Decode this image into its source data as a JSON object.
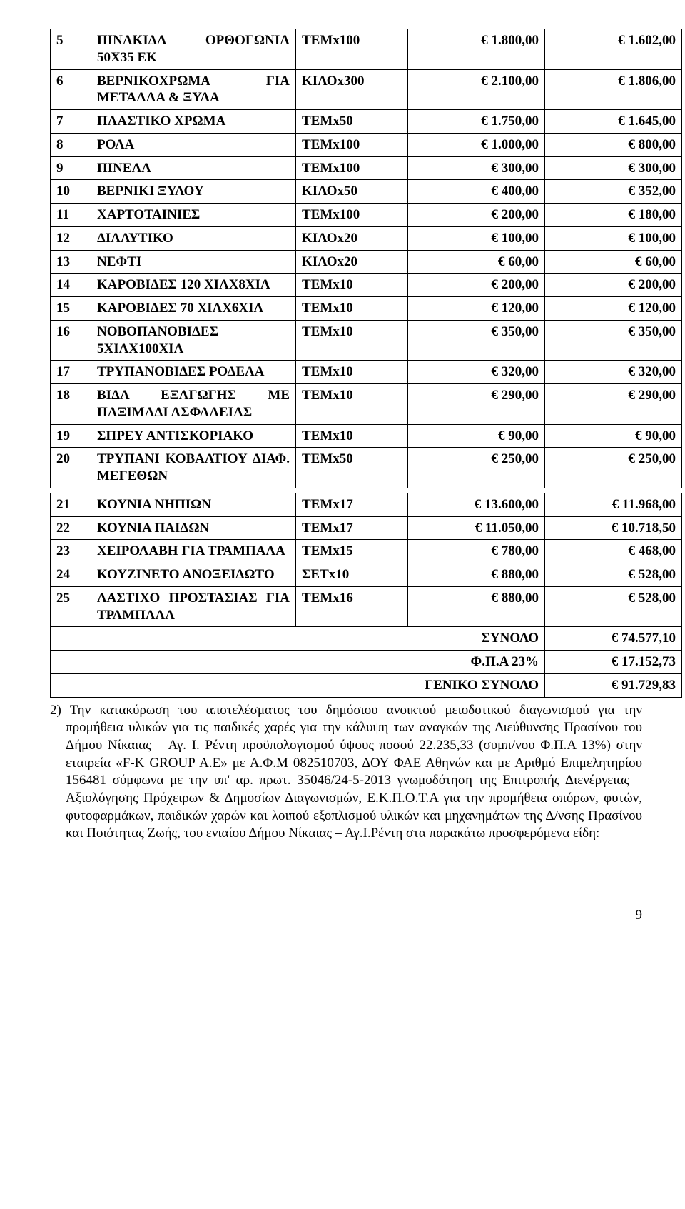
{
  "rows": [
    {
      "n": "5",
      "desc": "ΠΙΝΑΚΙΔΑ ΟΡΘΟΓΩΝΙΑ 50Χ35 ΕΚ",
      "unit": "ΤΕΜx100",
      "p1": "€ 1.800,00",
      "p2": "€ 1.602,00"
    },
    {
      "n": "6",
      "desc": "ΒΕΡΝΙΚΟΧΡΩΜΑ ΓΙΑ ΜΕΤΑΛΛΑ & ΞΥΛΑ",
      "unit": "ΚΙΛΟx300",
      "p1": "€ 2.100,00",
      "p2": "€ 1.806,00"
    },
    {
      "n": "7",
      "desc": "ΠΛΑΣΤΙΚΟ ΧΡΩΜΑ",
      "unit": "ΤΕΜx50",
      "p1": "€ 1.750,00",
      "p2": "€ 1.645,00"
    },
    {
      "n": "8",
      "desc": "ΡΟΛΑ",
      "unit": "ΤΕΜx100",
      "p1": "€ 1.000,00",
      "p2": "€ 800,00"
    },
    {
      "n": "9",
      "desc": "ΠΙΝΕΛΑ",
      "unit": "ΤΕΜx100",
      "p1": "€ 300,00",
      "p2": "€ 300,00"
    },
    {
      "n": "10",
      "desc": "ΒΕΡΝΙΚΙ ΞΥΛΟΥ",
      "unit": "ΚΙΛΟx50",
      "p1": "€ 400,00",
      "p2": "€ 352,00"
    },
    {
      "n": "11",
      "desc": "ΧΑΡΤΟΤΑΙΝΙΕΣ",
      "unit": "ΤΕΜx100",
      "p1": "€ 200,00",
      "p2": "€ 180,00"
    },
    {
      "n": "12",
      "desc": "ΔΙΑΛΥΤΙΚΟ",
      "unit": "ΚΙΛΟx20",
      "p1": "€ 100,00",
      "p2": "€ 100,00"
    },
    {
      "n": "13",
      "desc": "ΝΕΦΤΙ",
      "unit": "ΚΙΛΟx20",
      "p1": "€ 60,00",
      "p2": "€ 60,00"
    },
    {
      "n": "14",
      "desc": "ΚΑΡΟΒΙΔΕΣ 120 ΧΙΛΧ8ΧΙΛ",
      "unit": "ΤΕΜx10",
      "p1": "€ 200,00",
      "p2": "€ 200,00"
    },
    {
      "n": "15",
      "desc": "ΚΑΡΟΒΙΔΕΣ 70 ΧΙΛΧ6ΧΙΛ",
      "unit": "ΤΕΜx10",
      "p1": "€ 120,00",
      "p2": "€ 120,00"
    },
    {
      "n": "16",
      "desc": "ΝΟΒΟΠΑΝΟΒΙΔΕΣ 5ΧΙΛΧ100ΧΙΛ",
      "unit": "ΤΕΜx10",
      "p1": "€ 350,00",
      "p2": "€ 350,00"
    },
    {
      "n": "17",
      "desc": "ΤΡΥΠΑΝΟΒΙΔΕΣ ΡΟΔΕΛΑ",
      "unit": "ΤΕΜx10",
      "p1": "€ 320,00",
      "p2": "€ 320,00"
    },
    {
      "n": "18",
      "desc": "ΒΙΔΑ ΕΞΑΓΩΓΗΣ ΜΕ ΠΑΞΙΜΑΔΙ ΑΣΦΑΛΕΙΑΣ",
      "unit": "ΤΕΜx10",
      "p1": "€ 290,00",
      "p2": "€ 290,00"
    },
    {
      "n": "19",
      "desc": "ΣΠΡΕΥ ΑΝΤΙΣΚΟΡΙΑΚΟ",
      "unit": "ΤΕΜx10",
      "p1": "€ 90,00",
      "p2": "€ 90,00"
    },
    {
      "n": "20",
      "desc": "ΤΡΥΠΑΝΙ ΚΟΒΑΛΤΙΟΥ ΔΙΑΦ. ΜΕΓΕΘΩΝ",
      "unit": "ΤΕΜx50",
      "p1": "€ 250,00",
      "p2": "€ 250,00"
    }
  ],
  "rows2": [
    {
      "n": "21",
      "desc": "ΚΟΥΝΙΑ ΝΗΠΙΩΝ",
      "unit": "ΤΕΜx17",
      "p1": "€ 13.600,00",
      "p2": "€ 11.968,00"
    },
    {
      "n": "22",
      "desc": "ΚΟΥΝΙΑ ΠΑΙΔΩΝ",
      "unit": "ΤΕΜx17",
      "p1": "€ 11.050,00",
      "p2": "€ 10.718,50"
    },
    {
      "n": "23",
      "desc": "ΧΕΙΡΟΛΑΒΗ ΓΙΑ ΤΡΑΜΠΑΛΑ",
      "unit": "ΤΕΜx15",
      "p1": "€ 780,00",
      "p2": "€ 468,00"
    },
    {
      "n": "24",
      "desc": "ΚΟΥΖΙΝΕΤΟ ΑΝΟΞΕΙΔΩΤΟ",
      "unit": "ΣΕΤx10",
      "p1": "€ 880,00",
      "p2": "€ 528,00"
    },
    {
      "n": "25",
      "desc": "ΛΑΣΤΙΧΟ ΠΡΟΣΤΑΣΙΑΣ ΓΙΑ ΤΡΑΜΠΑΛΑ",
      "unit": "ΤΕΜx16",
      "p1": "€ 880,00",
      "p2": "€ 528,00"
    }
  ],
  "totals": [
    {
      "label": "ΣΥΝΟΛΟ",
      "val": "€ 74.577,10"
    },
    {
      "label": "Φ.Π.Α 23%",
      "val": "€ 17.152,73"
    },
    {
      "label": "ΓΕΝΙΚΟ ΣΥΝΟΛΟ",
      "val": "€ 91.729,83"
    }
  ],
  "paragraph": "2) Την κατακύρωση του αποτελέσματος του δημόσιου ανοικτού μειοδοτικού διαγωνισμού για την προμήθεια υλικών για τις παιδικές χαρές για την κάλυψη των αναγκών της Διεύθυνσης Πρασίνου του Δήμου Νίκαιας – Αγ. Ι. Ρέντη προϋπολογισμού ύψους ποσού 22.235,33 (συμπ/νου Φ.Π.Α 13%)  στην εταιρεία «F-K GROUP A.E» με Α.Φ.Μ 082510703, ΔΟΥ ΦΑΕ Αθηνών και με Αριθμό Επιμελητηρίου 156481 σύμφωνα με την υπ' αρ. πρωτ. 35046/24-5-2013 γνωμοδότηση της Επιτροπής Διενέργειας – Αξιολόγησης Πρόχειρων & Δημοσίων Διαγωνισμών, Ε.Κ.Π.Ο.Τ.Α για την προμήθεια σπόρων, φυτών, φυτοφαρμάκων, παιδικών χαρών και λοιπού εξοπλισμού υλικών και μηχανημάτων της Δ/νσης Πρασίνου και Ποιότητας Ζωής, του ενιαίου Δήμου Νίκαιας – Αγ.Ι.Ρέντη στα παρακάτω προσφερόμενα είδη:",
  "page_num": "9"
}
